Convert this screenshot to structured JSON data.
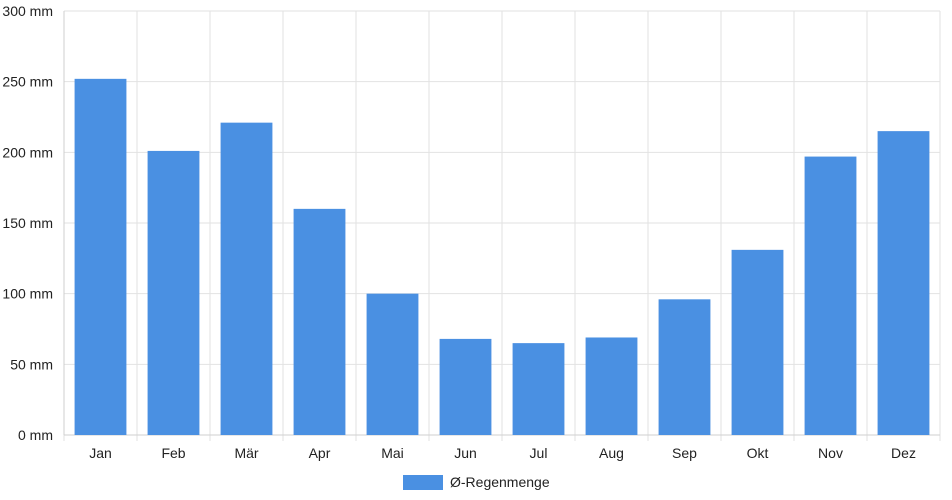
{
  "chart_data": {
    "type": "bar",
    "categories": [
      "Jan",
      "Feb",
      "Mär",
      "Apr",
      "Mai",
      "Jun",
      "Jul",
      "Aug",
      "Sep",
      "Okt",
      "Nov",
      "Dez"
    ],
    "series": [
      {
        "name": "Ø-Regenmenge",
        "values": [
          252,
          201,
          221,
          160,
          100,
          68,
          65,
          69,
          96,
          131,
          197,
          215
        ],
        "color": "#4a90e2"
      }
    ],
    "y_ticks": [
      "0 mm",
      "50 mm",
      "100 mm",
      "150 mm",
      "200 mm",
      "250 mm",
      "300 mm"
    ],
    "ylim": [
      0,
      300
    ],
    "y_unit": "mm",
    "grid": true,
    "legend_position": "bottom"
  }
}
